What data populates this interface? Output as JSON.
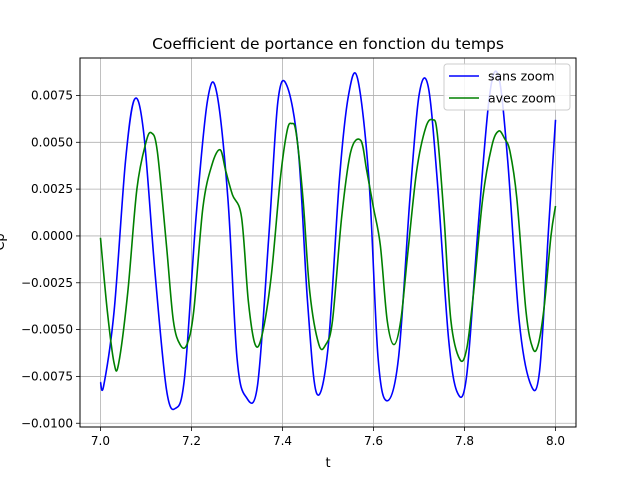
{
  "chart_data": {
    "type": "line",
    "title": "Coefficient de portance en fonction du temps",
    "xlabel": "t",
    "ylabel": "Cp",
    "xlim": [
      6.955,
      8.045
    ],
    "ylim": [
      -0.0102,
      0.0095
    ],
    "xticks": [
      7.0,
      7.2,
      7.4,
      7.6,
      7.8,
      8.0
    ],
    "xtick_labels": [
      "7.0",
      "7.2",
      "7.4",
      "7.6",
      "7.8",
      "8.0"
    ],
    "yticks": [
      -0.01,
      -0.0075,
      -0.005,
      -0.0025,
      0.0,
      0.0025,
      0.005,
      0.0075
    ],
    "ytick_labels": [
      "−0.0100",
      "−0.0075",
      "−0.0050",
      "−0.0025",
      "0.0000",
      "0.0025",
      "0.0050",
      "0.0075"
    ],
    "grid": true,
    "legend_position": "top-right",
    "series": [
      {
        "name": "sans zoom",
        "color": "#0000ff",
        "x": [
          7.0,
          7.007,
          7.03,
          7.055,
          7.075,
          7.095,
          7.12,
          7.145,
          7.165,
          7.185,
          7.21,
          7.235,
          7.255,
          7.28,
          7.3,
          7.32,
          7.345,
          7.37,
          7.39,
          7.41,
          7.435,
          7.455,
          7.475,
          7.5,
          7.525,
          7.545,
          7.565,
          7.59,
          7.61,
          7.63,
          7.655,
          7.68,
          7.7,
          7.72,
          7.74,
          7.765,
          7.785,
          7.805,
          7.83,
          7.855,
          7.875,
          7.895,
          7.92,
          7.945,
          7.965,
          7.985,
          8.0
        ],
        "y": [
          -0.0078,
          -0.008,
          -0.004,
          0.004,
          0.0073,
          0.0055,
          -0.002,
          -0.0082,
          -0.0092,
          -0.0075,
          0.001,
          0.0072,
          0.0077,
          0.002,
          -0.0065,
          -0.0086,
          -0.008,
          0.0,
          0.0072,
          0.008,
          0.0045,
          -0.0035,
          -0.0084,
          -0.006,
          0.003,
          0.0075,
          0.0084,
          0.003,
          -0.0065,
          -0.0088,
          -0.0065,
          0.002,
          0.0075,
          0.008,
          0.003,
          -0.0055,
          -0.0084,
          -0.0074,
          0.0005,
          0.0075,
          0.0085,
          0.004,
          -0.0045,
          -0.0079,
          -0.0072,
          0.0005,
          0.0062
        ]
      },
      {
        "name": "avec zoom",
        "color": "#008000",
        "x": [
          7.0,
          7.015,
          7.03,
          7.04,
          7.06,
          7.08,
          7.1,
          7.112,
          7.125,
          7.145,
          7.16,
          7.175,
          7.19,
          7.205,
          7.225,
          7.245,
          7.263,
          7.275,
          7.29,
          7.31,
          7.325,
          7.34,
          7.355,
          7.375,
          7.395,
          7.41,
          7.42,
          7.43,
          7.445,
          7.46,
          7.48,
          7.495,
          7.51,
          7.53,
          7.55,
          7.572,
          7.585,
          7.6,
          7.615,
          7.63,
          7.645,
          7.66,
          7.675,
          7.695,
          7.715,
          7.73,
          7.74,
          7.755,
          7.77,
          7.79,
          7.805,
          7.82,
          7.84,
          7.86,
          7.875,
          7.888,
          7.9,
          7.915,
          7.935,
          7.95,
          7.962,
          7.975,
          7.99,
          8.0
        ],
        "y": [
          -0.0001,
          -0.004,
          -0.0068,
          -0.0068,
          -0.003,
          0.0025,
          0.005,
          0.0055,
          0.0045,
          -0.0005,
          -0.0045,
          -0.0058,
          -0.0058,
          -0.004,
          0.0015,
          0.0038,
          0.0046,
          0.0035,
          0.0022,
          0.001,
          -0.0035,
          -0.0058,
          -0.0053,
          -0.0022,
          0.003,
          0.0056,
          0.006,
          0.0055,
          0.002,
          -0.003,
          -0.0058,
          -0.0058,
          -0.0045,
          0.001,
          0.0045,
          0.0051,
          0.0035,
          0.0015,
          -0.0005,
          -0.0045,
          -0.0058,
          -0.0045,
          -0.001,
          0.0035,
          0.0058,
          0.0062,
          0.0055,
          0.001,
          -0.0045,
          -0.0066,
          -0.006,
          -0.003,
          0.002,
          0.0048,
          0.0056,
          0.0052,
          0.0045,
          0.002,
          -0.004,
          -0.006,
          -0.0058,
          -0.0038,
          0.0,
          0.0016
        ]
      }
    ]
  }
}
